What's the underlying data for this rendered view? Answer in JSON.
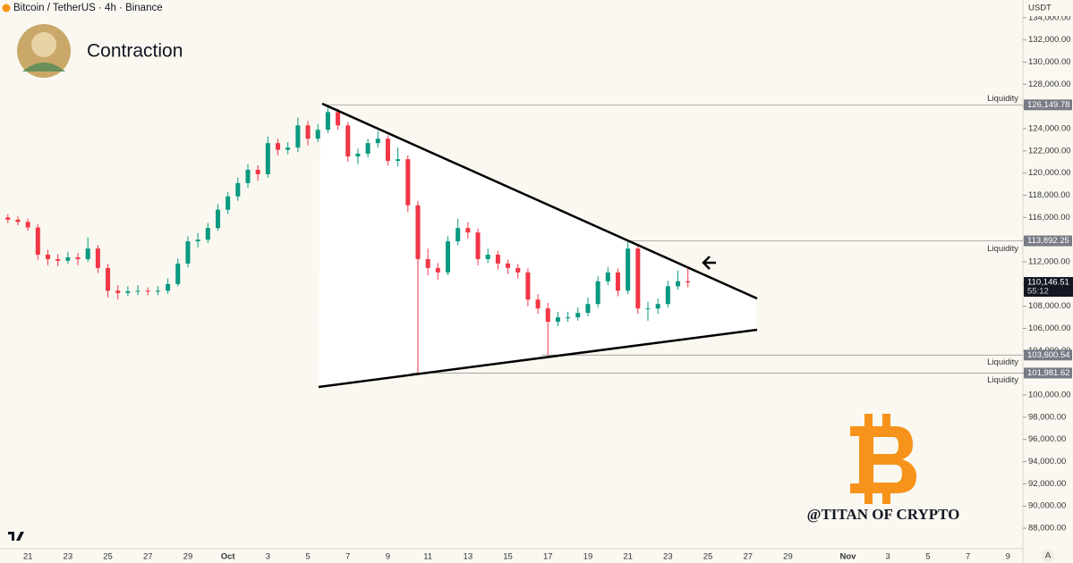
{
  "header": {
    "symbol": "Bitcoin / TetherUS · 4h · Binance",
    "currency": "USDT",
    "title": "Contraction",
    "watermark": "@TITAN OF CRYPTO",
    "scale_mode": "A"
  },
  "chart_data": {
    "type": "candlestick",
    "categories": [
      null,
      null,
      "21",
      null,
      null,
      null,
      "23",
      null,
      null,
      null,
      "25",
      null,
      null,
      null,
      "27",
      null,
      null,
      null,
      "29",
      null,
      null,
      null,
      "Oct",
      null,
      null,
      null,
      "3",
      null,
      null,
      null,
      "5",
      null,
      null,
      null,
      "7",
      null,
      null,
      null,
      "9",
      null,
      null,
      null,
      "11",
      null,
      null,
      null,
      "13",
      null,
      null,
      null,
      "15",
      null,
      null,
      null,
      "17",
      null,
      null,
      null,
      "19",
      null,
      null,
      null,
      "21",
      null,
      null,
      null,
      "23",
      null,
      null,
      null,
      "25",
      null,
      null,
      null,
      "27",
      null,
      null,
      null,
      "29",
      null,
      null,
      null,
      null,
      null,
      "Nov",
      null,
      null,
      null,
      "3",
      null,
      null,
      null,
      "5",
      null,
      null,
      null,
      "7",
      null,
      null,
      null,
      "9",
      null
    ],
    "open": [
      116000,
      115800,
      115600,
      115100,
      112650,
      112250,
      112100,
      112400,
      112250,
      113200,
      111450,
      109400,
      109200,
      109350,
      109400,
      109350,
      109400,
      110000,
      111850,
      113850,
      114000,
      115050,
      116700,
      117900,
      119100,
      120300,
      119900,
      122700,
      122100,
      122300,
      124300,
      123100,
      123900,
      125500,
      124300,
      121500,
      121750,
      122700,
      123100,
      121100,
      121250,
      117100,
      112250,
      111450,
      111050,
      113850,
      115050,
      114650,
      112250,
      112650,
      111850,
      111450,
      111050,
      108600,
      107800,
      106600,
      107000,
      107000,
      107400,
      108200,
      110250,
      111050,
      109400,
      113200,
      107800,
      107800,
      108200,
      109800,
      110250,
      null,
      null,
      null,
      null,
      null,
      null,
      null,
      null,
      null,
      null,
      null,
      null,
      null,
      null,
      null,
      null,
      null,
      null,
      null,
      null,
      null,
      null,
      null,
      null,
      null,
      null,
      null,
      null,
      null,
      null,
      null,
      null,
      null
    ],
    "high": [
      116300,
      116100,
      115900,
      115400,
      113100,
      112700,
      112900,
      112800,
      114200,
      113500,
      111800,
      109900,
      109800,
      109900,
      109700,
      109800,
      110500,
      112300,
      114300,
      114600,
      115500,
      117200,
      118300,
      119600,
      120800,
      120700,
      123300,
      123100,
      122800,
      125000,
      124700,
      124400,
      126100,
      125800,
      124600,
      122200,
      123100,
      123800,
      123400,
      122300,
      121600,
      117500,
      113200,
      111900,
      114300,
      115900,
      115600,
      115000,
      113200,
      113000,
      112200,
      111800,
      111400,
      109100,
      108300,
      107500,
      107500,
      107900,
      108800,
      110700,
      111500,
      111400,
      113900,
      113500,
      108400,
      108700,
      110300,
      111200,
      111600,
      null,
      null,
      null,
      null,
      null,
      null,
      null,
      null,
      null,
      null,
      null,
      null,
      null,
      null,
      null,
      null,
      null,
      null,
      null,
      null,
      null,
      null,
      null,
      null,
      null,
      null,
      null,
      null,
      null,
      null,
      null,
      null,
      null
    ],
    "low": [
      115500,
      115300,
      114800,
      112200,
      111700,
      111600,
      111800,
      111700,
      112000,
      111000,
      108800,
      108600,
      108900,
      109000,
      109000,
      109000,
      109100,
      109800,
      111500,
      113300,
      113700,
      114800,
      116300,
      117500,
      118700,
      119300,
      119600,
      121600,
      121700,
      121900,
      122500,
      122800,
      123600,
      123900,
      121000,
      120800,
      121400,
      122300,
      120700,
      120600,
      116500,
      102000,
      110800,
      110400,
      110800,
      113500,
      114100,
      111700,
      111900,
      111300,
      110900,
      110500,
      108000,
      107300,
      103600,
      106200,
      106600,
      106700,
      107100,
      107900,
      109900,
      108900,
      109100,
      107300,
      106700,
      107300,
      107900,
      109500,
      109700,
      null,
      null,
      null,
      null,
      null,
      null,
      null,
      null,
      null,
      null,
      null,
      null,
      null,
      null,
      null,
      null,
      null,
      null,
      null,
      null,
      null,
      null,
      null,
      null,
      null,
      null,
      null,
      null,
      null,
      null,
      null,
      null,
      null
    ],
    "close": [
      115800,
      115600,
      115100,
      112650,
      112250,
      112100,
      112400,
      112250,
      113200,
      111450,
      109400,
      109200,
      109350,
      109400,
      109350,
      109400,
      110000,
      111850,
      113850,
      114000,
      115050,
      116700,
      117900,
      119100,
      120300,
      119900,
      122700,
      122100,
      122300,
      124300,
      123100,
      123900,
      125500,
      124300,
      121500,
      121750,
      122700,
      123100,
      121100,
      121250,
      117100,
      112250,
      111450,
      111050,
      113850,
      115050,
      114650,
      112250,
      112650,
      111850,
      111450,
      111050,
      108600,
      107800,
      106600,
      107000,
      107000,
      107400,
      108200,
      110250,
      111050,
      109400,
      113200,
      107800,
      107800,
      108200,
      109800,
      110250,
      110146.51,
      null,
      null,
      null,
      null,
      null,
      null,
      null,
      null,
      null,
      null,
      null,
      null,
      null,
      null,
      null,
      null,
      null,
      null,
      null,
      null,
      null,
      null,
      null,
      null,
      null,
      null,
      null,
      null,
      null,
      null,
      null,
      null,
      null
    ],
    "up_color": "#089981",
    "down_color": "#f23645",
    "ylim": [
      86150,
      135600
    ],
    "yticks": [
      {
        "value": 88000,
        "label": "88,000.00"
      },
      {
        "value": 90000,
        "label": "90,000.00"
      },
      {
        "value": 92000,
        "label": "92,000.00"
      },
      {
        "value": 94000,
        "label": "94,000.00"
      },
      {
        "value": 96000,
        "label": "96,000.00"
      },
      {
        "value": 98000,
        "label": "98,000.00"
      },
      {
        "value": 100000,
        "label": "100,000.00"
      },
      {
        "value": 102000,
        "label": "102,000.00"
      },
      {
        "value": 104000,
        "label": "104,000.00"
      },
      {
        "value": 106000,
        "label": "106,000.00"
      },
      {
        "value": 108000,
        "label": "108,000.00"
      },
      {
        "value": 110000,
        "label": "110,000.00"
      },
      {
        "value": 112000,
        "label": "112,000.00"
      },
      {
        "value": 114000,
        "label": "114,000.00"
      },
      {
        "value": 116000,
        "label": "116,000.00"
      },
      {
        "value": 118000,
        "label": "118,000.00"
      },
      {
        "value": 120000,
        "label": "120,000.00"
      },
      {
        "value": 122000,
        "label": "122,000.00"
      },
      {
        "value": 124000,
        "label": "124,000.00"
      },
      {
        "value": 126000,
        "label": "126,000.00"
      },
      {
        "value": 128000,
        "label": "128,000.00"
      },
      {
        "value": 130000,
        "label": "130,000.00"
      },
      {
        "value": 132000,
        "label": "132,000.00"
      },
      {
        "value": 134000,
        "label": "134,000.00"
      }
    ],
    "levels": [
      {
        "value": 126149.78,
        "label": "126,149.78",
        "note": "Liquidity"
      },
      {
        "value": 113892.25,
        "label": "113,892.25",
        "note": "Liquidity"
      },
      {
        "value": 103600.54,
        "label": "103,600.54",
        "note": "Liquidity"
      },
      {
        "value": 101981.62,
        "label": "101,981.62",
        "note": "Liquidity"
      }
    ],
    "last_price": {
      "label": "110,146.51",
      "countdown": "55:12"
    }
  }
}
